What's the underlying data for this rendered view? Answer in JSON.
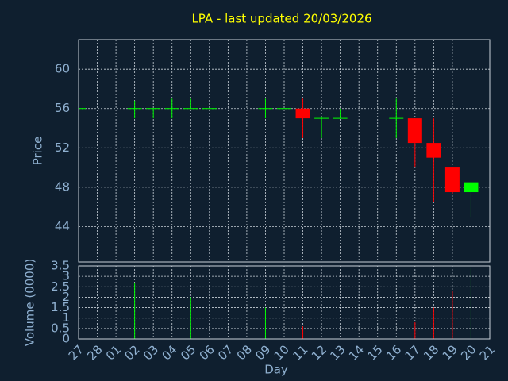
{
  "chart_data": {
    "type": "candlestick",
    "title": "LPA - last updated 20/03/2026",
    "xlabel": "Day",
    "ylabel": "Price",
    "volume_label": "Volume (0000)",
    "categories": [
      "27",
      "28",
      "01",
      "02",
      "03",
      "04",
      "05",
      "06",
      "07",
      "08",
      "09",
      "10",
      "11",
      "12",
      "13",
      "14",
      "15",
      "16",
      "17",
      "18",
      "19",
      "20",
      "21"
    ],
    "open": [
      56,
      null,
      null,
      56,
      56,
      56,
      56,
      56,
      null,
      null,
      56,
      56,
      56,
      55,
      55,
      null,
      null,
      55,
      55,
      52.5,
      50,
      47.5,
      null
    ],
    "high": [
      56,
      null,
      null,
      56.8,
      56,
      57,
      57,
      56,
      null,
      null,
      57,
      56,
      57,
      55.2,
      56,
      null,
      null,
      57,
      55,
      55,
      50,
      48.5,
      null
    ],
    "low": [
      56,
      null,
      null,
      55,
      55,
      55,
      56,
      56,
      null,
      null,
      55,
      56,
      53,
      53,
      55,
      null,
      null,
      53,
      50,
      46.5,
      47.3,
      45,
      null
    ],
    "close": [
      56,
      null,
      null,
      56,
      56,
      56,
      56,
      56,
      null,
      null,
      56,
      56,
      55,
      55,
      55,
      null,
      null,
      55,
      52.5,
      51,
      47.5,
      48.5,
      null
    ],
    "volume": [
      0,
      null,
      null,
      2.7,
      0,
      0,
      2,
      0,
      null,
      null,
      1.5,
      0,
      0.6,
      0,
      0,
      null,
      null,
      0,
      0.8,
      1.5,
      2.3,
      3.4,
      null
    ],
    "up_color": "#00ff00",
    "down_color": "#ff0000",
    "title_color": "#ffff00",
    "ylim": [
      40.4,
      63
    ],
    "yticks": [
      44,
      48,
      52,
      56,
      60
    ],
    "volume_ylim": [
      0,
      3.5
    ],
    "volume_yticks": [
      0,
      0.5,
      1,
      1.5,
      2,
      2.5,
      3,
      3.5
    ],
    "grid": true
  }
}
